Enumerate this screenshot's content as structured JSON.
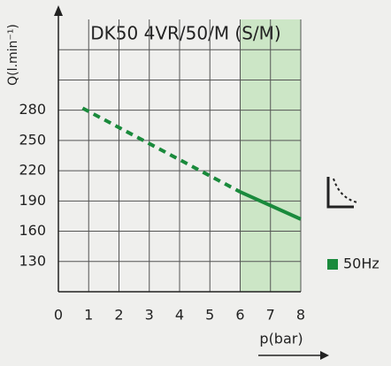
{
  "chart_data": {
    "type": "line",
    "title": "DK50 4VR/50/M (S/M)",
    "y_label": "Q(l.min⁻¹)",
    "x_label": "p(bar)",
    "xlim": [
      0,
      8
    ],
    "xticks": [
      0,
      1,
      2,
      3,
      4,
      5,
      6,
      7,
      8
    ],
    "ylim": [
      100,
      370
    ],
    "yticks": [
      130,
      160,
      190,
      220,
      250,
      280
    ],
    "extra_y_gridlines": [
      310,
      340
    ],
    "grid": true,
    "shaded_x": [
      6,
      8
    ],
    "shade_color": "#cce6c6",
    "series": [
      {
        "name": "50Hz",
        "color": "#1a8a3c",
        "style": "solid",
        "x": [
          6,
          8
        ],
        "values": [
          199,
          172
        ]
      },
      {
        "color": "#1a8a3c",
        "style": "dashed",
        "x": [
          0.8,
          6
        ],
        "values": [
          282,
          199
        ]
      }
    ],
    "legend": "right"
  }
}
